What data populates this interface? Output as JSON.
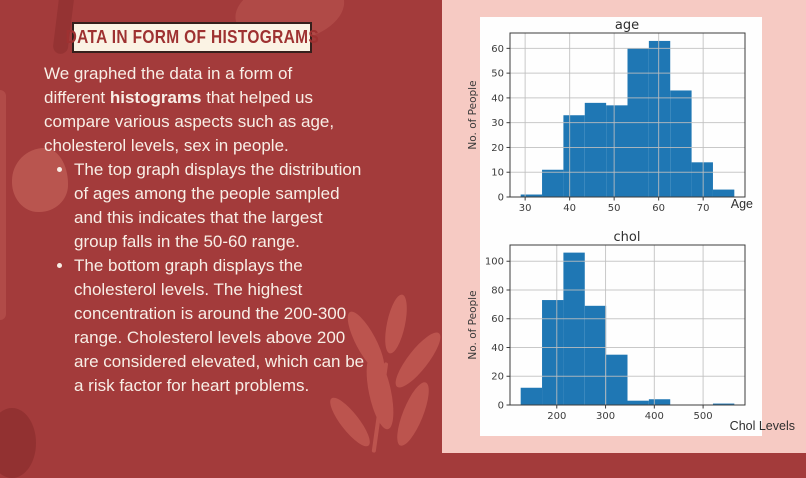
{
  "slide": {
    "title": "DATA IN FORM OF HISTOGRAMS",
    "intro": {
      "pre": "We graphed the data in a form of different ",
      "bold": "histograms",
      "post": " that helped us compare various aspects such as age, cholesterol levels, sex in people."
    },
    "bullets": [
      "The top graph displays the distribution of ages among the people sampled and this indicates that the largest group falls in the 50-60 range.",
      "The bottom graph displays the cholesterol levels. The highest concentration is around the 200-300 range. Cholesterol levels above 200 are considered elevated, which can be a risk factor for heart problems."
    ]
  },
  "colors": {
    "background": "#a33b3b",
    "decor": "#bd5a54",
    "panel_pink": "#f6cac3",
    "chart_bg": "#fefefe",
    "title_box_bg": "#fbf3e4",
    "title_box_border": "#35201c",
    "title_text": "#9e3131",
    "body_text": "#f8eee6",
    "bar": "#1f77b4",
    "chart_text": "#2e2e2e",
    "grid": "#bfbfbf"
  },
  "chart_data": [
    {
      "type": "bar",
      "title": "age",
      "ylabel": "No. of People",
      "xlabel_annotation": "Age",
      "bin_start": 29,
      "bin_width": 4.8,
      "values": [
        1,
        11,
        33,
        38,
        37,
        60,
        63,
        43,
        14,
        3
      ],
      "xticks": [
        30,
        40,
        50,
        60,
        70
      ],
      "yticks": [
        0,
        10,
        20,
        30,
        40,
        50,
        60
      ],
      "xlim": [
        26.6,
        79.4
      ],
      "ylim": [
        0,
        66.2
      ],
      "grid": true,
      "grid_above_bars": true,
      "legend": "none"
    },
    {
      "type": "bar",
      "title": "chol",
      "ylabel": "No. of People",
      "xlabel_annotation": "Chol Levels",
      "bin_start": 126,
      "bin_width": 43.8,
      "values": [
        12,
        73,
        106,
        69,
        35,
        3,
        4,
        0,
        0,
        1
      ],
      "xticks": [
        200,
        300,
        400,
        500
      ],
      "yticks": [
        0,
        20,
        40,
        60,
        80,
        100
      ],
      "xlim": [
        104.1,
        585.9
      ],
      "ylim": [
        0,
        111.3
      ],
      "grid": true,
      "grid_above_bars": true,
      "legend": "none"
    }
  ]
}
